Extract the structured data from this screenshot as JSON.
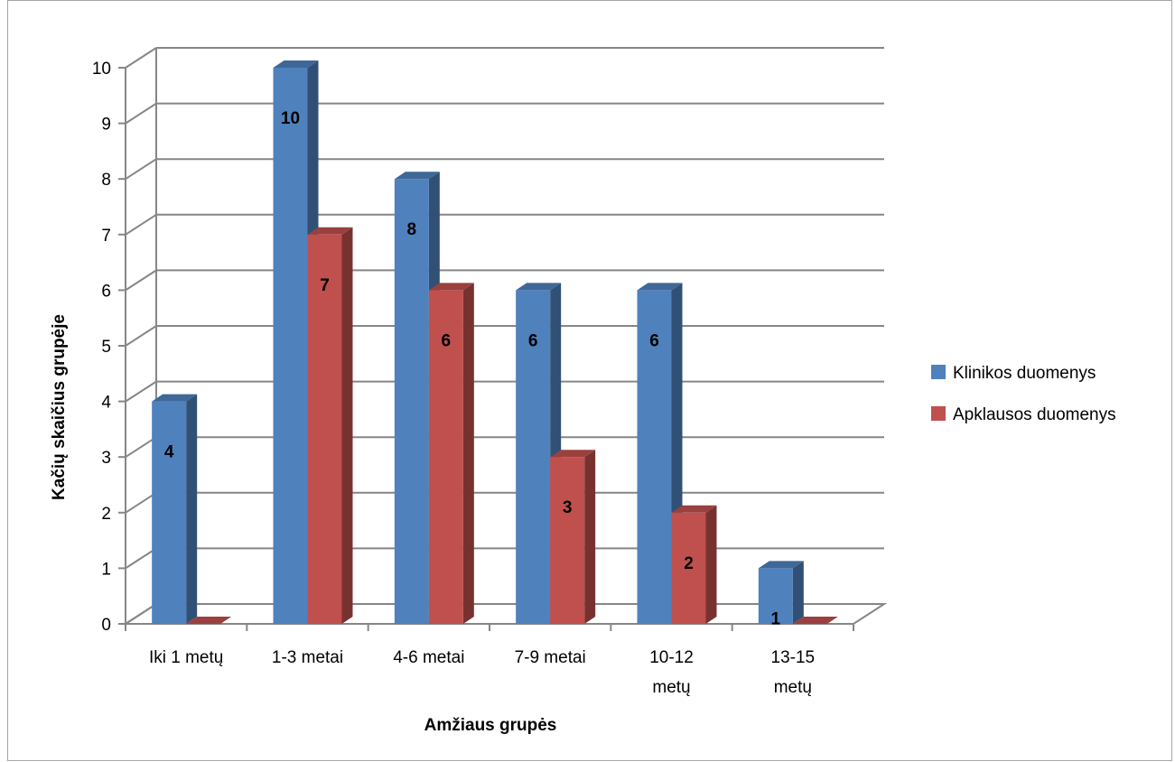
{
  "chart_data": {
    "type": "bar",
    "categories": [
      [
        "Iki 1 metų"
      ],
      [
        "1-3 metai"
      ],
      [
        "4-6 metai"
      ],
      [
        "7-9 metai"
      ],
      [
        "10-12",
        "metų"
      ],
      [
        "13-15",
        "metų"
      ]
    ],
    "series": [
      {
        "name": "Klinikos duomenys",
        "values": [
          4,
          10,
          8,
          6,
          6,
          1
        ],
        "color": "#4f81bd"
      },
      {
        "name": "Apklausos duomenys",
        "values": [
          0,
          7,
          6,
          3,
          2,
          0
        ],
        "color": "#c0504d"
      }
    ],
    "xlabel": "Amžiaus grupės",
    "ylabel": "Kačių skaičius grupėje",
    "ylim": [
      0,
      10
    ],
    "yticks": [
      0,
      1,
      2,
      3,
      4,
      5,
      6,
      7,
      8,
      9,
      10
    ],
    "grid": true,
    "style": "3d-clustered-column",
    "legend_position": "right"
  }
}
